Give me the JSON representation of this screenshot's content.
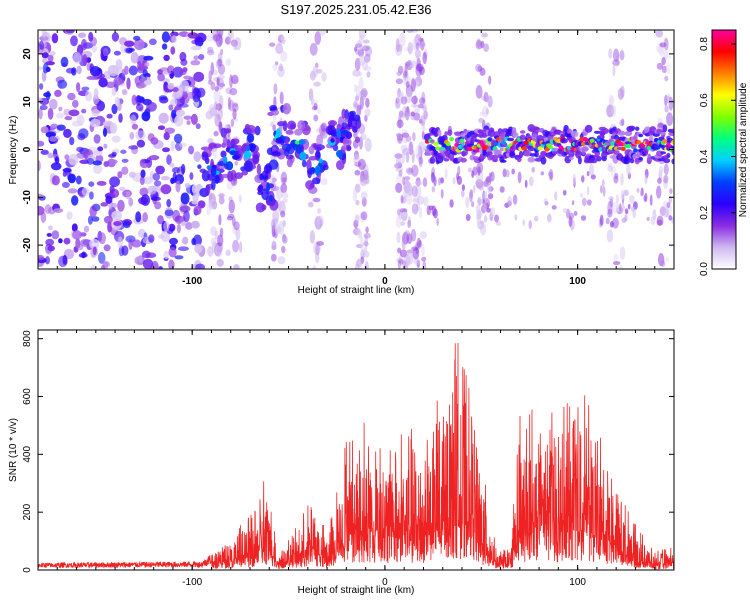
{
  "figure_title": "S197.2025.231.05.42.E36",
  "chart_data": [
    {
      "type": "heatmap",
      "name": "spectrogram",
      "xlabel": "Height of straight line (km)",
      "ylabel": "Frequency (Hz)",
      "xlim": [
        -180,
        150
      ],
      "ylim": [
        -25,
        25
      ],
      "x_ticks": [
        -100,
        0,
        100
      ],
      "x_tick_labels": [
        "-100",
        "0",
        "100"
      ],
      "y_ticks": [
        -20,
        -10,
        0,
        10,
        20
      ],
      "y_tick_labels": [
        "-20",
        "-10",
        "0",
        "10",
        "20"
      ],
      "colorbar": {
        "label": "Normalized spectral amplitude",
        "range": [
          0.0,
          0.85
        ],
        "ticks": [
          0.0,
          0.2,
          0.4,
          0.6,
          0.8
        ],
        "tick_labels": [
          "0.0",
          "0.2",
          "0.4",
          "0.6",
          "0.8"
        ],
        "colormap": [
          "#ffffff",
          "#cfb8f0",
          "#8a2be2",
          "#2a00ff",
          "#0040ff",
          "#00d0ff",
          "#00ff80",
          "#7fff00",
          "#ffff00",
          "#ff8000",
          "#ff0000",
          "#ff00a0"
        ]
      },
      "noise_region_km": [
        -180,
        -95
      ],
      "blob_track": [
        {
          "x": -90,
          "f": -4,
          "a": 0.35
        },
        {
          "x": -80,
          "f": -1,
          "a": 0.4
        },
        {
          "x": -70,
          "f": 0,
          "a": 0.35
        },
        {
          "x": -62,
          "f": -8,
          "a": 0.3
        },
        {
          "x": -55,
          "f": 4,
          "a": 0.4
        },
        {
          "x": -45,
          "f": 1,
          "a": 0.45
        },
        {
          "x": -35,
          "f": -4,
          "a": 0.4
        },
        {
          "x": -25,
          "f": 1,
          "a": 0.35
        },
        {
          "x": -18,
          "f": 5,
          "a": 0.3
        }
      ],
      "signal_band": {
        "start_km": 22,
        "end_km": 150,
        "center_hz": 1,
        "peak_amplitude": 0.8
      }
    },
    {
      "type": "line",
      "name": "snr",
      "xlabel": "Height of straight line (km)",
      "ylabel": "SNR (10 * v/v)",
      "xlim": [
        -180,
        150
      ],
      "ylim": [
        0,
        830
      ],
      "x_ticks": [
        -100,
        0,
        100
      ],
      "x_tick_labels": [
        "-100",
        "0",
        "100"
      ],
      "y_ticks": [
        0,
        200,
        400,
        600,
        800
      ],
      "y_tick_labels": [
        "0",
        "200",
        "400",
        "600",
        "800"
      ],
      "color": "#ee2222",
      "envelope": [
        {
          "x": -180,
          "y": 25
        },
        {
          "x": -95,
          "y": 30
        },
        {
          "x": -85,
          "y": 90
        },
        {
          "x": -70,
          "y": 180
        },
        {
          "x": -62,
          "y": 320
        },
        {
          "x": -55,
          "y": 60
        },
        {
          "x": -45,
          "y": 150
        },
        {
          "x": -38,
          "y": 250
        },
        {
          "x": -30,
          "y": 120
        },
        {
          "x": -20,
          "y": 430
        },
        {
          "x": -10,
          "y": 500
        },
        {
          "x": 0,
          "y": 420
        },
        {
          "x": 10,
          "y": 460
        },
        {
          "x": 20,
          "y": 480
        },
        {
          "x": 30,
          "y": 600
        },
        {
          "x": 37,
          "y": 820
        },
        {
          "x": 45,
          "y": 560
        },
        {
          "x": 52,
          "y": 300
        },
        {
          "x": 58,
          "y": 60
        },
        {
          "x": 65,
          "y": 80
        },
        {
          "x": 70,
          "y": 520
        },
        {
          "x": 80,
          "y": 560
        },
        {
          "x": 90,
          "y": 500
        },
        {
          "x": 100,
          "y": 640
        },
        {
          "x": 110,
          "y": 480
        },
        {
          "x": 120,
          "y": 280
        },
        {
          "x": 130,
          "y": 150
        },
        {
          "x": 140,
          "y": 60
        },
        {
          "x": 150,
          "y": 80
        }
      ]
    }
  ]
}
